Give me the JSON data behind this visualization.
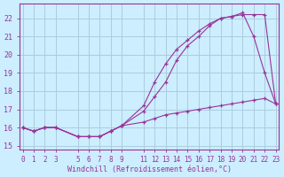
{
  "xlabel": "Windchill (Refroidissement éolien,°C)",
  "bg_color": "#cceeff",
  "grid_color": "#aaccdd",
  "line_color": "#993399",
  "xlim": [
    -0.3,
    23.3
  ],
  "ylim": [
    14.8,
    22.8
  ],
  "xticks": [
    0,
    1,
    2,
    3,
    5,
    6,
    7,
    8,
    9,
    11,
    12,
    13,
    14,
    15,
    16,
    17,
    18,
    19,
    20,
    21,
    22,
    23
  ],
  "yticks": [
    15,
    16,
    17,
    18,
    19,
    20,
    21,
    22
  ],
  "series1_x": [
    0,
    1,
    2,
    3,
    5,
    6,
    7,
    8,
    9,
    11,
    12,
    13,
    14,
    15,
    16,
    17,
    18,
    19,
    20,
    21,
    22,
    23
  ],
  "series1_y": [
    16.0,
    15.8,
    16.0,
    16.0,
    15.5,
    15.5,
    15.5,
    15.8,
    16.1,
    17.2,
    18.5,
    19.5,
    20.3,
    20.8,
    21.3,
    21.7,
    22.0,
    22.1,
    22.2,
    22.2,
    22.2,
    17.3
  ],
  "series2_x": [
    0,
    1,
    2,
    3,
    5,
    6,
    7,
    8,
    9,
    11,
    12,
    13,
    14,
    15,
    16,
    17,
    18,
    19,
    20,
    21,
    22,
    23
  ],
  "series2_y": [
    16.0,
    15.8,
    16.0,
    16.0,
    15.5,
    15.5,
    15.5,
    15.8,
    16.1,
    16.9,
    17.7,
    18.5,
    19.7,
    20.5,
    21.0,
    21.6,
    22.0,
    22.1,
    22.3,
    21.0,
    19.0,
    17.3
  ],
  "series3_x": [
    0,
    1,
    2,
    3,
    5,
    6,
    7,
    8,
    9,
    11,
    12,
    13,
    14,
    15,
    16,
    17,
    18,
    19,
    20,
    21,
    22,
    23
  ],
  "series3_y": [
    16.0,
    15.8,
    16.0,
    16.0,
    15.5,
    15.5,
    15.5,
    15.8,
    16.1,
    16.3,
    16.5,
    16.7,
    16.8,
    16.9,
    17.0,
    17.1,
    17.2,
    17.3,
    17.4,
    17.5,
    17.6,
    17.3
  ]
}
